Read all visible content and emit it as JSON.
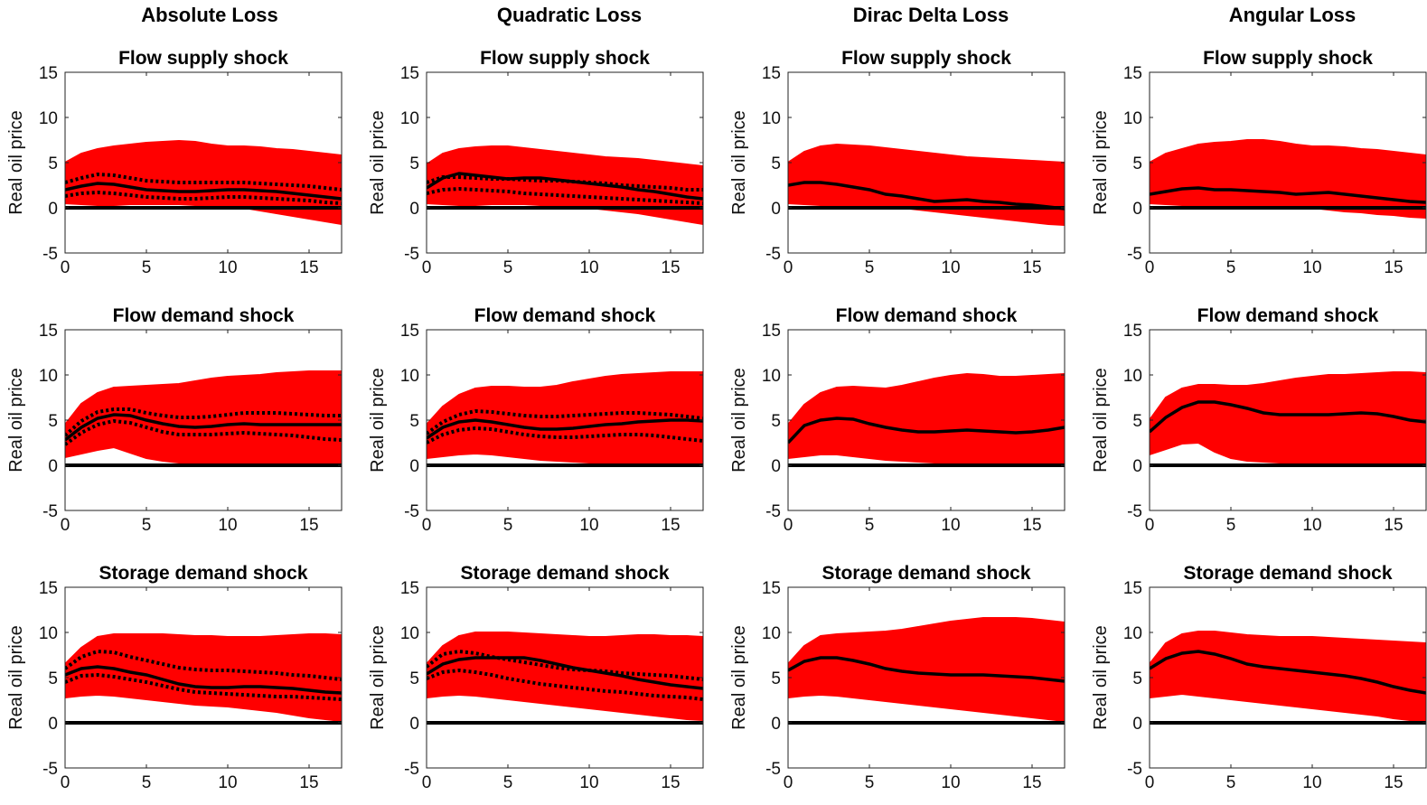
{
  "column_titles": [
    "Absolute Loss",
    "Quadratic Loss",
    "Dirac Delta Loss",
    "Angular Loss"
  ],
  "row_titles": [
    "Flow supply shock",
    "Flow demand shock",
    "Storage demand shock"
  ],
  "ylabel": "Real oil price",
  "xlim": [
    0,
    17
  ],
  "ylim": [
    -5,
    15
  ],
  "xticks": [
    0,
    5,
    10,
    15
  ],
  "yticks": [
    -5,
    0,
    5,
    10,
    15
  ],
  "colors": {
    "band": "#ff0000",
    "line": "#000000"
  },
  "chart_data": [
    {
      "type": "area",
      "column": "Absolute Loss",
      "title": "Flow supply shock",
      "ylabel": "Real oil price",
      "x": [
        0,
        1,
        2,
        3,
        4,
        5,
        6,
        7,
        8,
        9,
        10,
        11,
        12,
        13,
        14,
        15,
        16,
        17
      ],
      "band_upper": [
        5.0,
        6.0,
        6.5,
        6.8,
        7.0,
        7.2,
        7.3,
        7.4,
        7.3,
        7.0,
        6.8,
        6.8,
        6.7,
        6.5,
        6.4,
        6.2,
        6.0,
        5.8
      ],
      "band_lower": [
        0.5,
        0.4,
        0.3,
        0.3,
        0.4,
        0.4,
        0.4,
        0.4,
        0.3,
        0.2,
        0.1,
        0.0,
        -0.3,
        -0.6,
        -0.9,
        -1.2,
        -1.5,
        -1.8
      ],
      "median": [
        2.0,
        2.4,
        2.7,
        2.6,
        2.3,
        2.0,
        1.9,
        1.8,
        1.8,
        1.9,
        2.0,
        2.0,
        1.9,
        1.8,
        1.6,
        1.4,
        1.2,
        1.0
      ],
      "dotted": [
        [
          2.8,
          3.3,
          3.7,
          3.6,
          3.3,
          3.0,
          2.9,
          2.8,
          2.8,
          2.8,
          2.8,
          2.8,
          2.7,
          2.6,
          2.5,
          2.4,
          2.2,
          2.0
        ],
        [
          1.3,
          1.6,
          1.7,
          1.6,
          1.4,
          1.2,
          1.1,
          1.0,
          1.0,
          1.1,
          1.2,
          1.2,
          1.1,
          1.0,
          0.9,
          0.8,
          0.6,
          0.5
        ]
      ]
    },
    {
      "type": "area",
      "column": "Quadratic Loss",
      "title": "Flow supply shock",
      "ylabel": "Real oil price",
      "x": [
        0,
        1,
        2,
        3,
        4,
        5,
        6,
        7,
        8,
        9,
        10,
        11,
        12,
        13,
        14,
        15,
        16,
        17
      ],
      "band_upper": [
        4.8,
        6.0,
        6.5,
        6.7,
        6.8,
        6.8,
        6.6,
        6.4,
        6.2,
        6.0,
        5.8,
        5.6,
        5.5,
        5.4,
        5.2,
        5.0,
        4.8,
        4.6
      ],
      "band_lower": [
        0.5,
        0.4,
        0.3,
        0.3,
        0.4,
        0.4,
        0.4,
        0.3,
        0.2,
        0.1,
        0.0,
        -0.2,
        -0.4,
        -0.6,
        -0.9,
        -1.2,
        -1.5,
        -1.8
      ],
      "median": [
        2.2,
        3.3,
        3.8,
        3.6,
        3.4,
        3.2,
        3.3,
        3.3,
        3.1,
        2.9,
        2.7,
        2.5,
        2.3,
        2.0,
        1.8,
        1.5,
        1.2,
        1.0
      ],
      "dotted": [
        [
          2.8,
          3.4,
          3.4,
          3.3,
          3.2,
          3.2,
          3.1,
          3.0,
          3.0,
          2.9,
          2.8,
          2.7,
          2.5,
          2.4,
          2.3,
          2.2,
          2.0,
          2.0
        ],
        [
          1.6,
          2.0,
          2.1,
          2.0,
          1.9,
          1.8,
          1.6,
          1.5,
          1.4,
          1.3,
          1.2,
          1.1,
          1.0,
          0.9,
          0.8,
          0.7,
          0.6,
          0.5
        ]
      ]
    },
    {
      "type": "area",
      "column": "Dirac Delta Loss",
      "title": "Flow supply shock",
      "ylabel": "Real oil price",
      "x": [
        0,
        1,
        2,
        3,
        4,
        5,
        6,
        7,
        8,
        9,
        10,
        11,
        12,
        13,
        14,
        15,
        16,
        17
      ],
      "band_upper": [
        5.0,
        6.2,
        6.8,
        7.0,
        6.9,
        6.8,
        6.6,
        6.4,
        6.2,
        6.0,
        5.8,
        5.6,
        5.5,
        5.4,
        5.3,
        5.2,
        5.1,
        5.0
      ],
      "band_lower": [
        0.5,
        0.4,
        0.3,
        0.3,
        0.3,
        0.2,
        0.1,
        0.0,
        -0.2,
        -0.4,
        -0.6,
        -0.8,
        -1.0,
        -1.2,
        -1.4,
        -1.6,
        -1.8,
        -1.9
      ],
      "median": [
        2.5,
        2.8,
        2.8,
        2.6,
        2.3,
        2.0,
        1.5,
        1.3,
        1.0,
        0.7,
        0.8,
        0.9,
        0.7,
        0.6,
        0.4,
        0.3,
        0.1,
        -0.1
      ],
      "dotted": []
    },
    {
      "type": "area",
      "column": "Angular Loss",
      "title": "Flow supply shock",
      "ylabel": "Real oil price",
      "x": [
        0,
        1,
        2,
        3,
        4,
        5,
        6,
        7,
        8,
        9,
        10,
        11,
        12,
        13,
        14,
        15,
        16,
        17
      ],
      "band_upper": [
        5.0,
        6.0,
        6.5,
        7.0,
        7.2,
        7.3,
        7.5,
        7.5,
        7.3,
        7.0,
        6.8,
        6.8,
        6.7,
        6.5,
        6.4,
        6.2,
        6.0,
        5.8
      ],
      "band_lower": [
        0.5,
        0.4,
        0.3,
        0.3,
        0.3,
        0.3,
        0.3,
        0.3,
        0.2,
        0.1,
        0.0,
        -0.2,
        -0.4,
        -0.5,
        -0.7,
        -0.8,
        -1.0,
        -1.1
      ],
      "median": [
        1.5,
        1.8,
        2.1,
        2.2,
        2.0,
        2.0,
        1.9,
        1.8,
        1.7,
        1.5,
        1.6,
        1.7,
        1.5,
        1.3,
        1.1,
        0.9,
        0.7,
        0.6
      ],
      "dotted": []
    },
    {
      "type": "area",
      "column": "Absolute Loss",
      "title": "Flow demand shock",
      "ylabel": "Real oil price",
      "x": [
        0,
        1,
        2,
        3,
        4,
        5,
        6,
        7,
        8,
        9,
        10,
        11,
        12,
        13,
        14,
        15,
        16,
        17
      ],
      "band_upper": [
        4.5,
        6.8,
        8.0,
        8.6,
        8.7,
        8.8,
        8.9,
        9.0,
        9.3,
        9.6,
        9.8,
        9.9,
        10.0,
        10.2,
        10.3,
        10.4,
        10.4,
        10.4
      ],
      "band_lower": [
        0.9,
        1.3,
        1.7,
        2.0,
        1.4,
        0.8,
        0.5,
        0.3,
        0.2,
        0.1,
        0.1,
        0.1,
        0.1,
        0.1,
        0.1,
        0.1,
        0.1,
        0.1
      ],
      "median": [
        2.8,
        4.2,
        5.2,
        5.6,
        5.5,
        5.0,
        4.6,
        4.3,
        4.2,
        4.3,
        4.5,
        4.6,
        4.5,
        4.5,
        4.5,
        4.5,
        4.5,
        4.5
      ],
      "dotted": [
        [
          3.3,
          4.9,
          5.9,
          6.2,
          6.2,
          5.8,
          5.5,
          5.3,
          5.3,
          5.4,
          5.6,
          5.8,
          5.8,
          5.8,
          5.7,
          5.6,
          5.5,
          5.5
        ],
        [
          2.3,
          3.6,
          4.5,
          4.9,
          4.7,
          4.2,
          3.7,
          3.4,
          3.4,
          3.4,
          3.5,
          3.6,
          3.5,
          3.4,
          3.3,
          3.1,
          2.9,
          2.8
        ]
      ]
    },
    {
      "type": "area",
      "column": "Quadratic Loss",
      "title": "Flow demand shock",
      "ylabel": "Real oil price",
      "x": [
        0,
        1,
        2,
        3,
        4,
        5,
        6,
        7,
        8,
        9,
        10,
        11,
        12,
        13,
        14,
        15,
        16,
        17
      ],
      "band_upper": [
        4.5,
        6.5,
        7.8,
        8.5,
        8.7,
        8.7,
        8.6,
        8.6,
        8.8,
        9.2,
        9.5,
        9.8,
        10.0,
        10.1,
        10.2,
        10.3,
        10.3,
        10.3
      ],
      "band_lower": [
        0.8,
        1.0,
        1.2,
        1.3,
        1.2,
        1.0,
        0.8,
        0.6,
        0.5,
        0.4,
        0.3,
        0.3,
        0.3,
        0.3,
        0.3,
        0.3,
        0.2,
        0.2
      ],
      "median": [
        3.0,
        4.2,
        4.8,
        5.0,
        4.8,
        4.5,
        4.2,
        4.0,
        4.0,
        4.1,
        4.3,
        4.5,
        4.6,
        4.8,
        4.9,
        5.0,
        5.0,
        4.9
      ],
      "dotted": [
        [
          3.5,
          4.8,
          5.6,
          6.0,
          5.9,
          5.7,
          5.5,
          5.4,
          5.4,
          5.5,
          5.6,
          5.7,
          5.8,
          5.8,
          5.7,
          5.6,
          5.4,
          5.2
        ],
        [
          2.5,
          3.4,
          3.9,
          4.1,
          4.0,
          3.7,
          3.4,
          3.2,
          3.1,
          3.1,
          3.2,
          3.3,
          3.4,
          3.4,
          3.3,
          3.1,
          2.9,
          2.7
        ]
      ]
    },
    {
      "type": "area",
      "column": "Dirac Delta Loss",
      "title": "Flow demand shock",
      "ylabel": "Real oil price",
      "x": [
        0,
        1,
        2,
        3,
        4,
        5,
        6,
        7,
        8,
        9,
        10,
        11,
        12,
        13,
        14,
        15,
        16,
        17
      ],
      "band_upper": [
        4.5,
        6.7,
        8.0,
        8.6,
        8.7,
        8.6,
        8.5,
        8.8,
        9.2,
        9.6,
        9.9,
        10.1,
        10.0,
        9.8,
        9.8,
        9.9,
        10.0,
        10.1
      ],
      "band_lower": [
        0.8,
        1.0,
        1.2,
        1.2,
        1.0,
        0.8,
        0.6,
        0.5,
        0.4,
        0.3,
        0.2,
        0.2,
        0.1,
        0.1,
        0.1,
        0.1,
        0.1,
        0.1
      ],
      "median": [
        2.5,
        4.4,
        5.0,
        5.2,
        5.1,
        4.6,
        4.2,
        3.9,
        3.7,
        3.7,
        3.8,
        3.9,
        3.8,
        3.7,
        3.6,
        3.7,
        3.9,
        4.2
      ],
      "dotted": []
    },
    {
      "type": "area",
      "column": "Angular Loss",
      "title": "Flow demand shock",
      "ylabel": "Real oil price",
      "x": [
        0,
        1,
        2,
        3,
        4,
        5,
        6,
        7,
        8,
        9,
        10,
        11,
        12,
        13,
        14,
        15,
        16,
        17
      ],
      "band_upper": [
        5.0,
        7.5,
        8.5,
        8.9,
        8.9,
        8.8,
        8.8,
        9.0,
        9.3,
        9.6,
        9.8,
        10.0,
        10.0,
        10.1,
        10.2,
        10.3,
        10.3,
        10.2
      ],
      "band_lower": [
        1.2,
        1.8,
        2.4,
        2.5,
        1.5,
        0.8,
        0.5,
        0.4,
        0.3,
        0.3,
        0.3,
        0.3,
        0.3,
        0.3,
        0.2,
        0.2,
        0.2,
        0.2
      ],
      "median": [
        3.7,
        5.3,
        6.4,
        7.0,
        7.0,
        6.7,
        6.3,
        5.8,
        5.6,
        5.6,
        5.6,
        5.6,
        5.7,
        5.8,
        5.7,
        5.4,
        5.0,
        4.8
      ],
      "dotted": []
    },
    {
      "type": "area",
      "column": "Absolute Loss",
      "title": "Storage demand shock",
      "ylabel": "Real oil price",
      "x": [
        0,
        1,
        2,
        3,
        4,
        5,
        6,
        7,
        8,
        9,
        10,
        11,
        12,
        13,
        14,
        15,
        16,
        17
      ],
      "band_upper": [
        6.5,
        8.3,
        9.5,
        9.8,
        9.8,
        9.8,
        9.8,
        9.7,
        9.6,
        9.6,
        9.5,
        9.5,
        9.5,
        9.6,
        9.7,
        9.8,
        9.8,
        9.7
      ],
      "band_lower": [
        2.8,
        3.0,
        3.1,
        3.0,
        2.8,
        2.6,
        2.4,
        2.2,
        2.0,
        1.9,
        1.8,
        1.6,
        1.4,
        1.2,
        0.9,
        0.6,
        0.4,
        0.2
      ],
      "median": [
        5.3,
        6.0,
        6.2,
        6.0,
        5.6,
        5.3,
        4.8,
        4.3,
        4.0,
        3.9,
        3.9,
        4.0,
        4.0,
        3.9,
        3.8,
        3.6,
        3.4,
        3.3
      ],
      "dotted": [
        [
          6.0,
          7.3,
          7.9,
          7.8,
          7.3,
          6.9,
          6.5,
          6.1,
          5.9,
          5.8,
          5.8,
          5.7,
          5.6,
          5.5,
          5.3,
          5.2,
          5.0,
          4.8
        ],
        [
          4.5,
          5.2,
          5.3,
          5.1,
          4.8,
          4.5,
          4.1,
          3.7,
          3.4,
          3.3,
          3.2,
          3.1,
          3.0,
          2.9,
          2.9,
          2.8,
          2.7,
          2.6
        ]
      ]
    },
    {
      "type": "area",
      "column": "Quadratic Loss",
      "title": "Storage demand shock",
      "ylabel": "Real oil price",
      "x": [
        0,
        1,
        2,
        3,
        4,
        5,
        6,
        7,
        8,
        9,
        10,
        11,
        12,
        13,
        14,
        15,
        16,
        17
      ],
      "band_upper": [
        6.5,
        8.5,
        9.6,
        10.0,
        10.0,
        10.0,
        9.9,
        9.8,
        9.7,
        9.6,
        9.5,
        9.5,
        9.6,
        9.7,
        9.7,
        9.6,
        9.6,
        9.5
      ],
      "band_lower": [
        2.8,
        3.0,
        3.1,
        3.0,
        2.8,
        2.6,
        2.4,
        2.2,
        2.0,
        1.8,
        1.6,
        1.4,
        1.2,
        1.0,
        0.8,
        0.6,
        0.4,
        0.3
      ],
      "median": [
        5.4,
        6.5,
        7.0,
        7.2,
        7.2,
        7.2,
        7.2,
        6.9,
        6.5,
        6.1,
        5.8,
        5.5,
        5.2,
        4.8,
        4.5,
        4.2,
        4.0,
        3.8
      ],
      "dotted": [
        [
          6.2,
          7.6,
          7.9,
          7.7,
          7.3,
          7.0,
          6.7,
          6.4,
          6.1,
          5.9,
          5.8,
          5.7,
          5.5,
          5.4,
          5.3,
          5.2,
          5.0,
          4.8
        ],
        [
          4.9,
          5.6,
          5.8,
          5.6,
          5.3,
          4.9,
          4.6,
          4.3,
          4.1,
          3.9,
          3.7,
          3.5,
          3.4,
          3.2,
          3.0,
          2.9,
          2.8,
          2.6
        ]
      ]
    },
    {
      "type": "area",
      "column": "Dirac Delta Loss",
      "title": "Storage demand shock",
      "ylabel": "Real oil price",
      "x": [
        0,
        1,
        2,
        3,
        4,
        5,
        6,
        7,
        8,
        9,
        10,
        11,
        12,
        13,
        14,
        15,
        16,
        17
      ],
      "band_upper": [
        6.5,
        8.5,
        9.6,
        9.8,
        9.9,
        10.0,
        10.1,
        10.3,
        10.6,
        10.9,
        11.2,
        11.4,
        11.6,
        11.6,
        11.6,
        11.5,
        11.3,
        11.1
      ],
      "band_lower": [
        2.8,
        3.0,
        3.1,
        3.0,
        2.8,
        2.6,
        2.4,
        2.2,
        2.0,
        1.8,
        1.6,
        1.4,
        1.2,
        1.0,
        0.8,
        0.6,
        0.4,
        0.2
      ],
      "median": [
        5.8,
        6.8,
        7.2,
        7.2,
        6.9,
        6.5,
        6.0,
        5.7,
        5.5,
        5.4,
        5.3,
        5.3,
        5.3,
        5.2,
        5.1,
        5.0,
        4.8,
        4.6
      ],
      "dotted": []
    },
    {
      "type": "area",
      "column": "Angular Loss",
      "title": "Storage demand shock",
      "ylabel": "Real oil price",
      "x": [
        0,
        1,
        2,
        3,
        4,
        5,
        6,
        7,
        8,
        9,
        10,
        11,
        12,
        13,
        14,
        15,
        16,
        17
      ],
      "band_upper": [
        6.5,
        8.8,
        9.8,
        10.1,
        10.1,
        9.9,
        9.7,
        9.6,
        9.5,
        9.5,
        9.5,
        9.4,
        9.3,
        9.2,
        9.1,
        9.0,
        8.9,
        8.8
      ],
      "band_lower": [
        2.8,
        3.0,
        3.2,
        3.0,
        2.8,
        2.6,
        2.4,
        2.2,
        2.0,
        1.8,
        1.6,
        1.4,
        1.2,
        1.0,
        0.8,
        0.5,
        0.3,
        0.2
      ],
      "median": [
        6.0,
        7.1,
        7.7,
        7.9,
        7.6,
        7.1,
        6.5,
        6.2,
        6.0,
        5.8,
        5.6,
        5.4,
        5.2,
        4.9,
        4.5,
        4.0,
        3.6,
        3.3
      ],
      "dotted": []
    }
  ]
}
